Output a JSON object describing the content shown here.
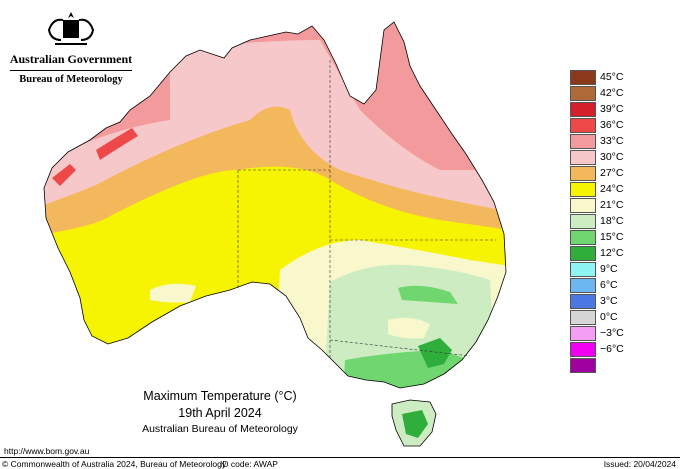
{
  "header": {
    "government": "Australian Government",
    "bureau": "Bureau of Meteorology",
    "crest_icon": "commonwealth-coat-of-arms-icon"
  },
  "map": {
    "subject": "Australia",
    "colors": {
      "t45": "#8a3a1a",
      "t42": "#b06a3a",
      "t39": "#d4202a",
      "t36": "#ee4848",
      "t33": "#f39a9c",
      "t30": "#f7c8c9",
      "t27": "#f4b85c",
      "t24": "#f6f400",
      "t21": "#f9f8cc",
      "t18": "#cdecc2",
      "t15": "#6fd670",
      "t12": "#2fae3c",
      "water": "#ffffff"
    }
  },
  "legend": {
    "items": [
      {
        "label": "45°C",
        "color": "#8a3a1a"
      },
      {
        "label": "42°C",
        "color": "#b06a3a"
      },
      {
        "label": "39°C",
        "color": "#d4202a"
      },
      {
        "label": "36°C",
        "color": "#ee4848"
      },
      {
        "label": "33°C",
        "color": "#f39a9c"
      },
      {
        "label": "30°C",
        "color": "#f7c8c9"
      },
      {
        "label": "27°C",
        "color": "#f4b85c"
      },
      {
        "label": "24°C",
        "color": "#f6f400"
      },
      {
        "label": "21°C",
        "color": "#f9f8cc"
      },
      {
        "label": "18°C",
        "color": "#cdecc2"
      },
      {
        "label": "15°C",
        "color": "#6fd670"
      },
      {
        "label": "12°C",
        "color": "#2fae3c"
      },
      {
        "label": "9°C",
        "color": "#8ef4f4"
      },
      {
        "label": "6°C",
        "color": "#6cb6f2"
      },
      {
        "label": "3°C",
        "color": "#4c78e4"
      },
      {
        "label": "0°C",
        "color": "#d6d6d6"
      },
      {
        "label": "−3°C",
        "color": "#f49ef4"
      },
      {
        "label": "−6°C",
        "color": "#f000f0"
      },
      {
        "label": "",
        "color": "#a000a0"
      }
    ]
  },
  "caption": {
    "title": "Maximum Temperature (°C)",
    "date": "19th April 2024",
    "source": "Australian Bureau of Meteorology"
  },
  "footer": {
    "url": "http://www.bom.gov.au",
    "copyright": "© Commonwealth of Australia 2024, Bureau of Meteorology",
    "id_code": "ID code: AWAP",
    "issued": "Issued: 20/04/2024"
  }
}
